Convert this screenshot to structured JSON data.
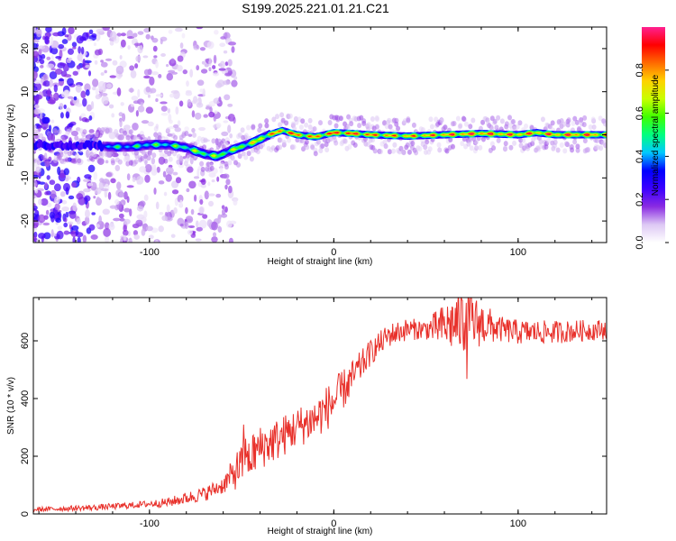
{
  "title": "S199.2025.221.01.21.C21",
  "chart_data": [
    {
      "type": "heatmap",
      "panel": "top",
      "xlabel": "Height of straight line (km)",
      "ylabel": "Frequency (Hz)",
      "xlim": [
        -163,
        148
      ],
      "ylim": [
        -25,
        25
      ],
      "x_ticks": [
        -100,
        0,
        100
      ],
      "x_tick_labels": [
        "-100",
        "0",
        "100"
      ],
      "y_ticks": [
        -20,
        -10,
        0,
        10,
        20
      ],
      "y_tick_labels": [
        "-20",
        "-10",
        "0",
        "10",
        "20"
      ],
      "colorbar": {
        "label": "Normalized spectral amplitude",
        "range": [
          0.0,
          1.0
        ],
        "ticks": [
          0.0,
          0.2,
          0.4,
          0.6,
          0.8
        ],
        "tick_labels": [
          "0.0",
          "0.2",
          "0.4",
          "0.6",
          "0.8"
        ],
        "stops": [
          "#ffffff",
          "#ddc8f4",
          "#8a2be2",
          "#3b00ff",
          "#0000ff",
          "#00c8ff",
          "#00ff80",
          "#40ff00",
          "#c8ff00",
          "#ffd200",
          "#ff6a00",
          "#ff0000",
          "#ff2090"
        ]
      },
      "ridge_x": [
        -163,
        -150,
        -140,
        -130,
        -120,
        -110,
        -100,
        -90,
        -80,
        -70,
        -63,
        -55,
        -45,
        -35,
        -28,
        -20,
        -10,
        0,
        10,
        20,
        40,
        60,
        80,
        100,
        110,
        120,
        130,
        148
      ],
      "ridge_freq": [
        -2.5,
        -2.5,
        -2.5,
        -2.5,
        -2.8,
        -2.8,
        -2.3,
        -2.3,
        -3.0,
        -4.5,
        -5.0,
        -3.5,
        -2.0,
        0.0,
        1.0,
        0.0,
        -0.5,
        0.5,
        0.3,
        0.0,
        -0.3,
        0.0,
        0.3,
        0.0,
        0.5,
        0.0,
        0.0,
        0.0
      ],
      "ridge_strength": [
        0.35,
        0.4,
        0.4,
        0.45,
        0.5,
        0.5,
        0.55,
        0.55,
        0.6,
        0.65,
        0.65,
        0.65,
        0.7,
        0.8,
        0.9,
        0.9,
        0.85,
        0.95,
        0.95,
        0.9,
        0.85,
        0.9,
        0.95,
        0.9,
        0.9,
        0.9,
        0.95,
        0.9
      ]
    },
    {
      "type": "line",
      "panel": "bottom",
      "xlabel": "Height of straight line (km)",
      "ylabel": "SNR (10 * v/v)",
      "xlim": [
        -163,
        148
      ],
      "ylim": [
        0,
        750
      ],
      "x_ticks": [
        -100,
        0,
        100
      ],
      "x_tick_labels": [
        "-100",
        "0",
        "100"
      ],
      "y_ticks": [
        0,
        200,
        400,
        600
      ],
      "y_tick_labels": [
        "0",
        "200",
        "400",
        "600"
      ],
      "series": [
        {
          "name": "SNR",
          "color": "#e8302a",
          "trend_x": [
            -163,
            -130,
            -110,
            -90,
            -70,
            -60,
            -50,
            -40,
            -30,
            -20,
            -10,
            0,
            10,
            20,
            30,
            40,
            50,
            60,
            70,
            80,
            90,
            100,
            120,
            148
          ],
          "trend_y": [
            15,
            22,
            30,
            40,
            70,
            100,
            170,
            230,
            260,
            300,
            330,
            390,
            470,
            560,
            620,
            640,
            640,
            650,
            670,
            660,
            640,
            630,
            630,
            640
          ],
          "noise_x": [
            -163,
            -100,
            -60,
            -50,
            -20,
            0,
            20,
            50,
            60,
            70,
            80,
            90,
            148
          ],
          "noise_amp": [
            8,
            12,
            30,
            80,
            70,
            80,
            45,
            35,
            80,
            120,
            80,
            45,
            35
          ]
        }
      ]
    }
  ]
}
